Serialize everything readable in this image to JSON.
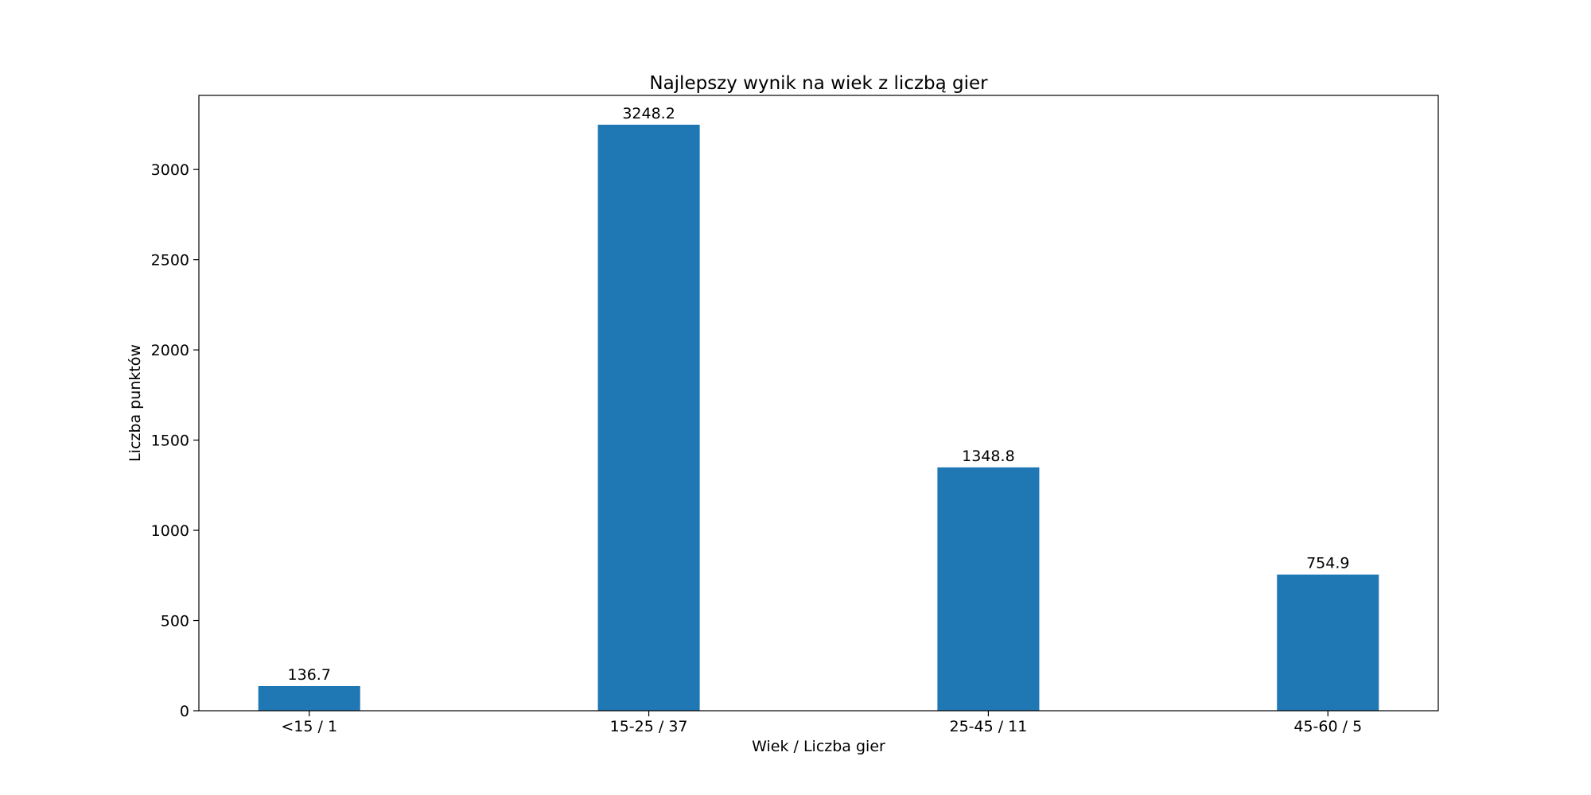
{
  "chart_data": {
    "type": "bar",
    "title": "Najlepszy wynik na wiek z liczbą gier",
    "xlabel": "Wiek / Liczba gier",
    "ylabel": "Liczba punktów",
    "categories": [
      "<15 / 1",
      "15-25 / 37",
      "25-45 / 11",
      "45-60 / 5"
    ],
    "values": [
      136.7,
      3248.2,
      1348.8,
      754.9
    ],
    "data_labels": [
      "136.7",
      "3248.2",
      "1348.8",
      "754.9"
    ],
    "ylim": [
      0,
      3410.6
    ],
    "yticks": [
      0,
      500,
      1000,
      1500,
      2000,
      2500,
      3000
    ],
    "ytick_labels": [
      "0",
      "500",
      "1000",
      "1500",
      "2000",
      "2500",
      "3000"
    ],
    "bar_color": "#1f77b4",
    "grid": false,
    "legend": "none"
  }
}
